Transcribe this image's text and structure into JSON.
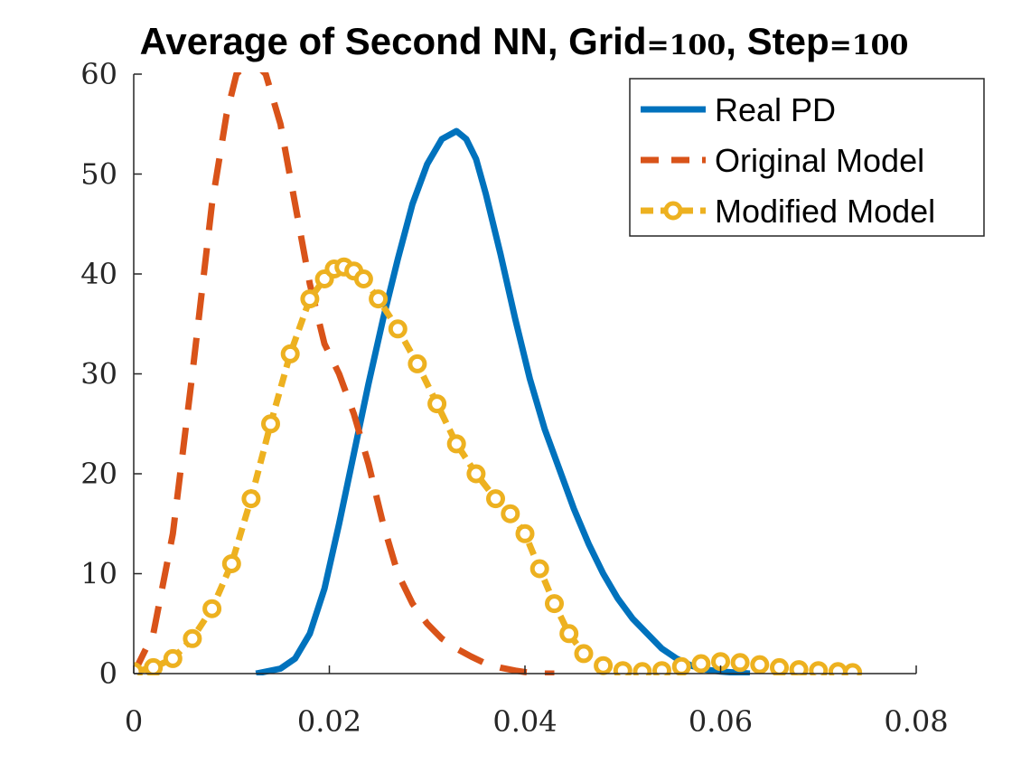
{
  "chart_data": {
    "type": "line",
    "title": "Average of Second NN, Grid=100, Step=100",
    "title_parts": [
      "Average of Second NN, Grid",
      "=100",
      ", Step",
      "=100"
    ],
    "xlabel": "",
    "ylabel": "",
    "xlim": [
      0,
      0.08
    ],
    "ylim": [
      0,
      60
    ],
    "xticks": [
      0,
      0.02,
      0.04,
      0.06,
      0.08
    ],
    "xtick_labels": [
      "0",
      "0.02",
      "0.04",
      "0.06",
      "0.08"
    ],
    "yticks": [
      0,
      10,
      20,
      30,
      40,
      50,
      60
    ],
    "ytick_labels": [
      "0",
      "10",
      "20",
      "30",
      "40",
      "50",
      "60"
    ],
    "grid": false,
    "legend_position": "top-right",
    "series": [
      {
        "name": "Real PD",
        "style": "solid",
        "color": "#0072BD",
        "x": [
          0.0125,
          0.015,
          0.0165,
          0.018,
          0.0195,
          0.021,
          0.0225,
          0.024,
          0.0255,
          0.027,
          0.0285,
          0.03,
          0.0315,
          0.033,
          0.034,
          0.035,
          0.036,
          0.0375,
          0.039,
          0.0405,
          0.042,
          0.0435,
          0.045,
          0.0465,
          0.048,
          0.0495,
          0.051,
          0.0525,
          0.054,
          0.0555,
          0.057,
          0.0585,
          0.06,
          0.0615,
          0.063
        ],
        "y": [
          0,
          0.5,
          1.5,
          4,
          8.5,
          15,
          22,
          29,
          35.5,
          41.5,
          47,
          51,
          53.5,
          54.3,
          53.5,
          51.5,
          48,
          42,
          35.5,
          29.5,
          24.5,
          20.5,
          16.5,
          13,
          10,
          7.5,
          5.5,
          4,
          2.5,
          1.5,
          0.8,
          0.4,
          0.2,
          0.1,
          0
        ]
      },
      {
        "name": "Original Model",
        "style": "dashed",
        "color": "#D95319",
        "x": [
          0,
          0.002,
          0.004,
          0.006,
          0.008,
          0.0095,
          0.0105,
          0.0115,
          0.0125,
          0.0135,
          0.015,
          0.0165,
          0.018,
          0.0195,
          0.021,
          0.0225,
          0.024,
          0.0255,
          0.027,
          0.0285,
          0.03,
          0.0315,
          0.033,
          0.0345,
          0.036,
          0.0375,
          0.039,
          0.04,
          0.041,
          0.042,
          0.043
        ],
        "y": [
          0,
          4,
          14,
          30,
          47,
          56,
          60,
          61,
          61,
          60,
          55,
          47,
          39,
          33,
          30,
          26,
          21,
          15,
          10,
          7,
          5,
          3.5,
          2.5,
          1.7,
          1,
          0.6,
          0.3,
          0.15,
          0.05,
          0,
          0
        ]
      },
      {
        "name": "Modified Model",
        "style": "dashed-circle",
        "color": "#EDB120",
        "x": [
          0,
          0.002,
          0.004,
          0.006,
          0.008,
          0.01,
          0.012,
          0.014,
          0.016,
          0.018,
          0.0195,
          0.0205,
          0.0215,
          0.0225,
          0.0235,
          0.025,
          0.027,
          0.029,
          0.031,
          0.033,
          0.035,
          0.037,
          0.0385,
          0.04,
          0.0415,
          0.043,
          0.0445,
          0.046,
          0.048,
          0.05,
          0.052,
          0.054,
          0.056,
          0.058,
          0.06,
          0.062,
          0.064,
          0.066,
          0.068,
          0.07,
          0.072,
          0.0735
        ],
        "y": [
          0.2,
          0.6,
          1.5,
          3.5,
          6.5,
          11,
          17.5,
          25,
          32,
          37.5,
          39.5,
          40.5,
          40.7,
          40.3,
          39.5,
          37.5,
          34.5,
          31,
          27,
          23,
          20,
          17.5,
          16,
          14,
          10.5,
          7,
          4,
          2,
          0.8,
          0.3,
          0.2,
          0.3,
          0.7,
          1.0,
          1.2,
          1.1,
          0.9,
          0.6,
          0.4,
          0.3,
          0.2,
          0.1
        ]
      }
    ]
  }
}
